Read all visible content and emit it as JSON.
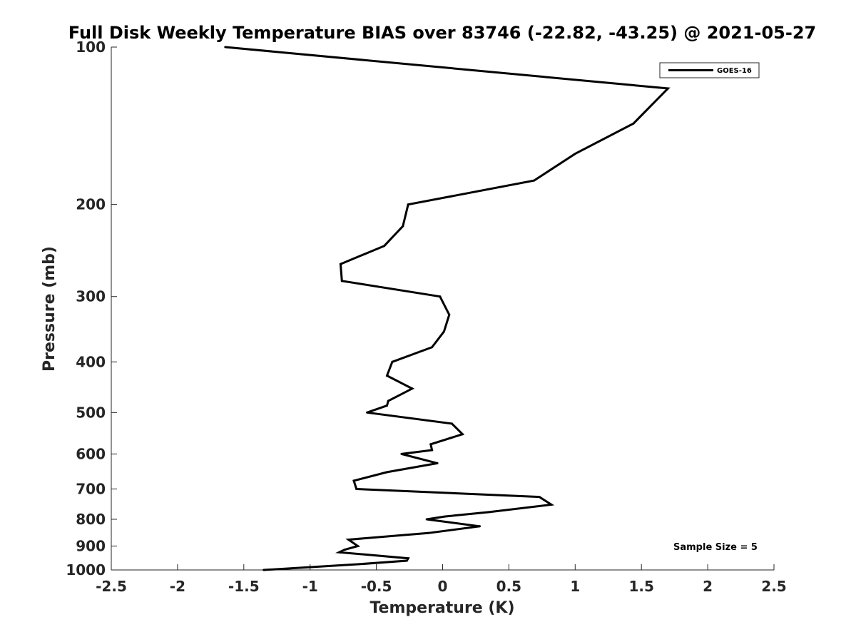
{
  "chart_data": {
    "type": "line",
    "title": "Full Disk Weekly Temperature BIAS over 83746 (-22.82, -43.25) @ 2021-05-27",
    "xlabel": "Temperature (K)",
    "ylabel": "Pressure (mb)",
    "xlim": [
      -2.5,
      2.5
    ],
    "ylim": [
      1000,
      100
    ],
    "yscale": "log",
    "y_reversed": true,
    "grid": false,
    "x_ticks": [
      -2.5,
      -2,
      -1.5,
      -1,
      -0.5,
      0,
      0.5,
      1,
      1.5,
      2,
      2.5
    ],
    "x_tick_labels": [
      "-2.5",
      "-2",
      "-1.5",
      "-1",
      "-0.5",
      "0",
      "0.5",
      "1",
      "1.5",
      "2",
      "2.5"
    ],
    "y_ticks": [
      100,
      200,
      300,
      400,
      500,
      600,
      700,
      800,
      900,
      1000
    ],
    "y_tick_labels": [
      "100",
      "200",
      "300",
      "400",
      "500",
      "600",
      "700",
      "800",
      "900",
      "1000"
    ],
    "legend_position": "top-right",
    "series": [
      {
        "name": "GOES-16",
        "color": "#000000",
        "points": [
          {
            "x": -1.64,
            "y": 100
          },
          {
            "x": 1.7,
            "y": 120
          },
          {
            "x": 1.44,
            "y": 140
          },
          {
            "x": 1.0,
            "y": 160
          },
          {
            "x": 0.69,
            "y": 180
          },
          {
            "x": -0.26,
            "y": 200
          },
          {
            "x": -0.3,
            "y": 220
          },
          {
            "x": -0.44,
            "y": 240
          },
          {
            "x": -0.77,
            "y": 260
          },
          {
            "x": -0.76,
            "y": 280
          },
          {
            "x": -0.02,
            "y": 300
          },
          {
            "x": 0.05,
            "y": 325
          },
          {
            "x": 0.01,
            "y": 350
          },
          {
            "x": -0.08,
            "y": 375
          },
          {
            "x": -0.38,
            "y": 400
          },
          {
            "x": -0.42,
            "y": 425
          },
          {
            "x": -0.23,
            "y": 450
          },
          {
            "x": -0.41,
            "y": 475
          },
          {
            "x": -0.42,
            "y": 485
          },
          {
            "x": -0.57,
            "y": 500
          },
          {
            "x": 0.07,
            "y": 525
          },
          {
            "x": 0.15,
            "y": 550
          },
          {
            "x": -0.09,
            "y": 575
          },
          {
            "x": -0.08,
            "y": 590
          },
          {
            "x": -0.31,
            "y": 600
          },
          {
            "x": -0.04,
            "y": 625
          },
          {
            "x": -0.42,
            "y": 650
          },
          {
            "x": -0.67,
            "y": 675
          },
          {
            "x": -0.65,
            "y": 700
          },
          {
            "x": 0.73,
            "y": 725
          },
          {
            "x": 0.82,
            "y": 750
          },
          {
            "x": 0.35,
            "y": 775
          },
          {
            "x": 0.02,
            "y": 790
          },
          {
            "x": -0.12,
            "y": 800
          },
          {
            "x": 0.28,
            "y": 825
          },
          {
            "x": -0.11,
            "y": 850
          },
          {
            "x": -0.71,
            "y": 875
          },
          {
            "x": -0.64,
            "y": 900
          },
          {
            "x": -0.74,
            "y": 915
          },
          {
            "x": -0.78,
            "y": 925
          },
          {
            "x": -0.26,
            "y": 950
          },
          {
            "x": -0.27,
            "y": 960
          },
          {
            "x": -0.63,
            "y": 975
          },
          {
            "x": -1.35,
            "y": 1000
          }
        ]
      }
    ],
    "annotations": [
      {
        "text": "Sample Size = 5",
        "position": "bottom-right"
      }
    ]
  }
}
